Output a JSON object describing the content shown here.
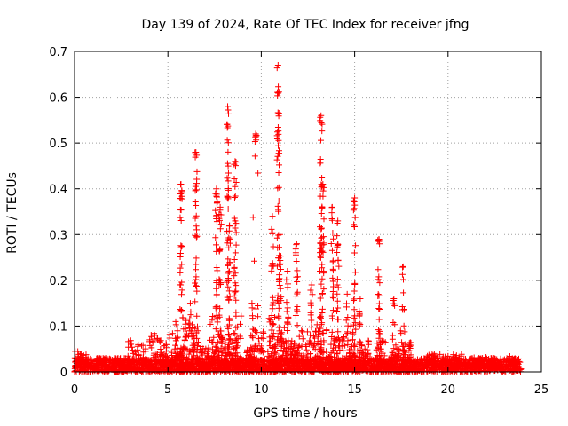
{
  "chart_data": {
    "type": "scatter",
    "title": "Day 139 of 2024, Rate Of TEC Index for receiver jfng",
    "xlabel": "GPS time / hours",
    "ylabel": "ROTI / TECUs",
    "xlim": [
      0,
      25
    ],
    "ylim": [
      0,
      0.7
    ],
    "x_ticks": [
      "0",
      "5",
      "10",
      "15",
      "20",
      "25"
    ],
    "y_ticks": [
      "0",
      "0.1",
      "0.2",
      "0.3",
      "0.4",
      "0.5",
      "0.6",
      "0.7"
    ],
    "grid": true,
    "marker": "+",
    "series_color": "#ff0000",
    "baseline": {
      "x_start": 0.0,
      "x_end": 23.9,
      "typical_max": 0.03
    },
    "bursts": [
      [
        0.1,
        0.05
      ],
      [
        0.5,
        0.04
      ],
      [
        1.5,
        0.03
      ],
      [
        2.4,
        0.03
      ],
      [
        3.1,
        0.07
      ],
      [
        3.6,
        0.06
      ],
      [
        4.2,
        0.09
      ],
      [
        4.8,
        0.08
      ],
      [
        5.3,
        0.09
      ],
      [
        5.6,
        0.14
      ],
      [
        6.1,
        0.12
      ],
      [
        6.5,
        0.1
      ],
      [
        7.0,
        0.06
      ],
      [
        7.5,
        0.15
      ],
      [
        8.0,
        0.1
      ],
      [
        8.7,
        0.13
      ],
      [
        9.4,
        0.05
      ],
      [
        9.9,
        0.09
      ],
      [
        10.6,
        0.12
      ],
      [
        11.2,
        0.1
      ],
      [
        11.8,
        0.08
      ],
      [
        12.4,
        0.09
      ],
      [
        13.0,
        0.11
      ],
      [
        13.7,
        0.1
      ],
      [
        14.2,
        0.08
      ],
      [
        14.8,
        0.1
      ],
      [
        15.5,
        0.07
      ],
      [
        16.4,
        0.09
      ],
      [
        17.2,
        0.06
      ],
      [
        17.8,
        0.07
      ],
      [
        19.1,
        0.04
      ],
      [
        19.8,
        0.04
      ],
      [
        20.5,
        0.04
      ],
      [
        21.5,
        0.03
      ],
      [
        22.3,
        0.03
      ],
      [
        23.5,
        0.03
      ]
    ],
    "spikes": [
      [
        5.7,
        0.41,
        0.05
      ],
      [
        6.2,
        0.15,
        0.07
      ],
      [
        6.5,
        0.48,
        0.1
      ],
      [
        7.6,
        0.4,
        0.06
      ],
      [
        7.8,
        0.36,
        0.1
      ],
      [
        8.2,
        0.58,
        0.07
      ],
      [
        8.3,
        0.32,
        0.06
      ],
      [
        8.6,
        0.46,
        0.08
      ],
      [
        9.5,
        0.15,
        0.04
      ],
      [
        9.7,
        0.52,
        0.5
      ],
      [
        10.6,
        0.34,
        0.06
      ],
      [
        10.9,
        0.67,
        0.08
      ],
      [
        11.0,
        0.3,
        0.08
      ],
      [
        11.4,
        0.22,
        0.07
      ],
      [
        11.9,
        0.28,
        0.06
      ],
      [
        12.7,
        0.19,
        0.08
      ],
      [
        13.2,
        0.56,
        0.1
      ],
      [
        13.3,
        0.41,
        0.1
      ],
      [
        13.8,
        0.36,
        0.08
      ],
      [
        14.1,
        0.33,
        0.06
      ],
      [
        14.6,
        0.17,
        0.06
      ],
      [
        15.0,
        0.38,
        0.06
      ],
      [
        15.3,
        0.16,
        0.07
      ],
      [
        16.3,
        0.29,
        0.06
      ],
      [
        17.1,
        0.16,
        0.08
      ],
      [
        17.6,
        0.23,
        0.12
      ]
    ]
  }
}
